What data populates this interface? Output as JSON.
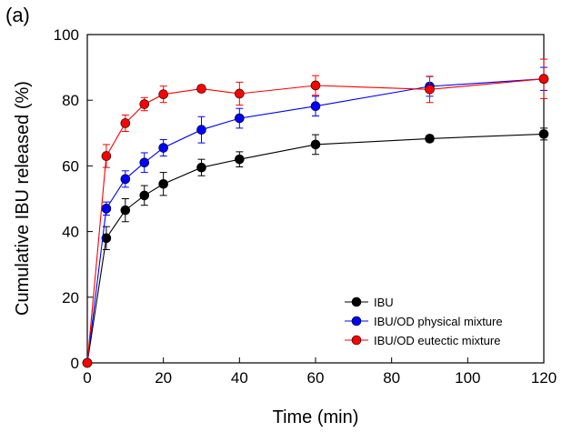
{
  "panel_label": "(a)",
  "chart_data": {
    "type": "line",
    "xlabel": "Time (min)",
    "ylabel": "Cumulative IBU released (%)",
    "xlim": [
      0,
      120
    ],
    "ylim": [
      0,
      100
    ],
    "xticks": [
      0,
      20,
      40,
      60,
      80,
      100,
      120
    ],
    "yticks": [
      0,
      20,
      40,
      60,
      80,
      100
    ],
    "grid": false,
    "legend": "bottom-right",
    "x": [
      0,
      5,
      10,
      15,
      20,
      30,
      40,
      60,
      90,
      120
    ],
    "series": [
      {
        "name": "IBU",
        "color": "#000000",
        "values": [
          0,
          38,
          46.5,
          51,
          54.5,
          59.5,
          62,
          66.5,
          68.3,
          69.7
        ],
        "errors": [
          0,
          3.5,
          3.5,
          3.0,
          3.5,
          2.5,
          2.3,
          3.0,
          1.0,
          1.8
        ]
      },
      {
        "name": "IBU/OD physical mixture",
        "color": "#0000ff",
        "values": [
          0,
          47,
          56,
          61,
          65.5,
          71,
          74.5,
          78.2,
          84.2,
          86.5
        ],
        "errors": [
          0,
          2.0,
          2.5,
          3.0,
          2.5,
          4.0,
          3.0,
          3.0,
          3.0,
          3.5
        ]
      },
      {
        "name": "IBU/OD eutectic mixture",
        "color": "#ff0000",
        "values": [
          0,
          63,
          73,
          78.8,
          81.8,
          83.5,
          82,
          84.5,
          83.3,
          86.5
        ],
        "errors": [
          0,
          3.5,
          2.5,
          2.0,
          2.5,
          1.0,
          3.5,
          3.0,
          4.0,
          6.0
        ]
      }
    ]
  }
}
